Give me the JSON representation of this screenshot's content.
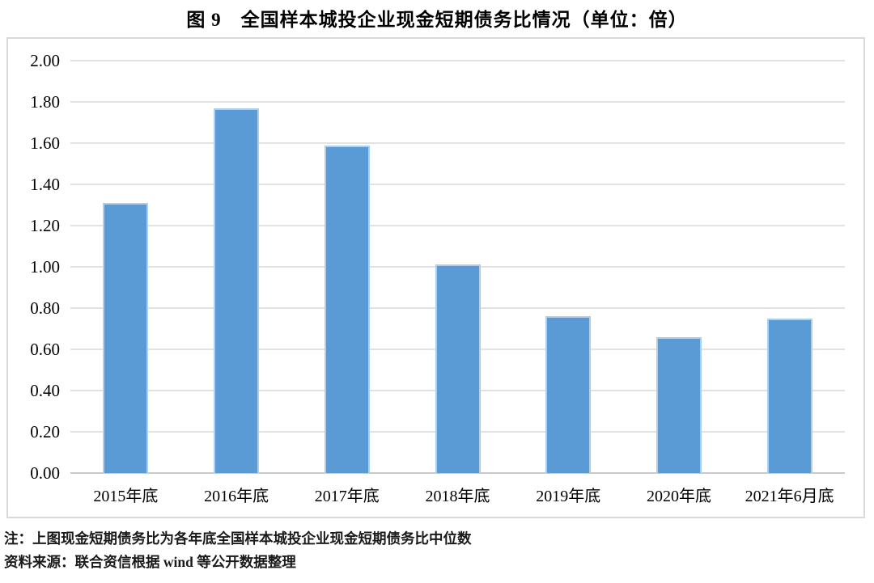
{
  "chart_data": {
    "type": "bar",
    "title": "图 9　全国样本城投企业现金短期债务比情况（单位：倍）",
    "unit": "倍",
    "categories": [
      "2015年底",
      "2016年底",
      "2017年底",
      "2018年底",
      "2019年底",
      "2020年底",
      "2021年6月底"
    ],
    "values": [
      1.31,
      1.77,
      1.59,
      1.01,
      0.76,
      0.66,
      0.75
    ],
    "xlabel": "",
    "ylabel": "",
    "ylim": [
      0,
      2.0
    ],
    "ytick_step": 0.2,
    "ytick_labels": [
      "2.00",
      "1.80",
      "1.60",
      "1.40",
      "1.20",
      "1.00",
      "0.80",
      "0.60",
      "0.40",
      "0.20",
      "0.00"
    ],
    "grid": true,
    "legend_position": "none",
    "bar_color": "#5B9BD5",
    "bar_border_color": "#AECFEC",
    "gridline_color": "#E2E2E2",
    "axis_line_color": "#C9C9C9",
    "frame_border_color": "#D9D9D9"
  },
  "notes": {
    "line1": "注：上图现金短期债务比为各年底全国样本城投企业现金短期债务比中位数",
    "line2": "资料来源：联合资信根据 wind 等公开数据整理"
  }
}
